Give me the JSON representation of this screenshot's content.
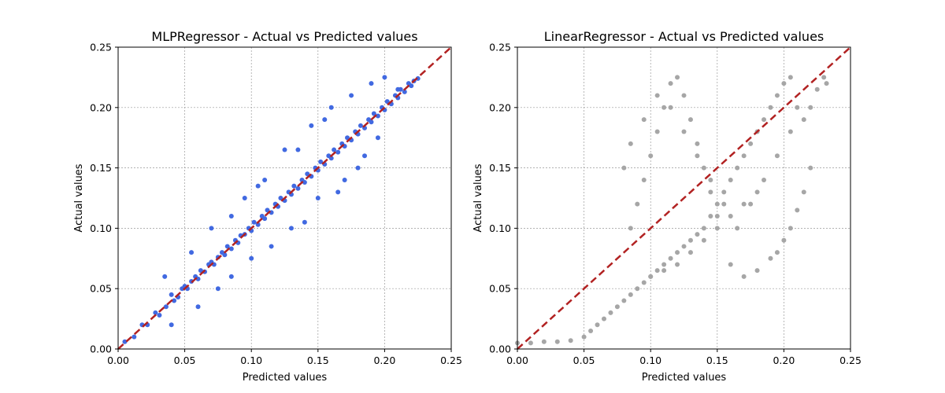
{
  "chart_data": [
    {
      "type": "scatter",
      "title": "MLPRegressor - Actual vs Predicted values",
      "xlabel": "Predicted values",
      "ylabel": "Actual values",
      "xlim": [
        0.0,
        0.25
      ],
      "ylim": [
        0.0,
        0.25
      ],
      "xticks": [
        "0.00",
        "0.05",
        "0.10",
        "0.15",
        "0.20",
        "0.25"
      ],
      "yticks": [
        "0.00",
        "0.05",
        "0.10",
        "0.15",
        "0.20",
        "0.25"
      ],
      "grid": true,
      "point_color": "#4169e1",
      "reference_line": {
        "from": [
          0.0,
          0.0
        ],
        "to": [
          0.25,
          0.25
        ],
        "color": "#b22222",
        "style": "dashed"
      },
      "x": [
        0.005,
        0.012,
        0.018,
        0.022,
        0.028,
        0.031,
        0.036,
        0.04,
        0.042,
        0.045,
        0.048,
        0.05,
        0.052,
        0.055,
        0.058,
        0.06,
        0.062,
        0.065,
        0.068,
        0.07,
        0.072,
        0.075,
        0.078,
        0.08,
        0.082,
        0.085,
        0.088,
        0.09,
        0.092,
        0.095,
        0.098,
        0.1,
        0.102,
        0.105,
        0.108,
        0.11,
        0.112,
        0.115,
        0.118,
        0.12,
        0.122,
        0.125,
        0.128,
        0.13,
        0.132,
        0.135,
        0.138,
        0.14,
        0.142,
        0.145,
        0.148,
        0.15,
        0.152,
        0.155,
        0.158,
        0.16,
        0.162,
        0.165,
        0.168,
        0.17,
        0.172,
        0.175,
        0.178,
        0.18,
        0.182,
        0.185,
        0.188,
        0.19,
        0.192,
        0.195,
        0.198,
        0.2,
        0.202,
        0.205,
        0.208,
        0.21,
        0.212,
        0.215,
        0.218,
        0.22,
        0.222,
        0.225,
        0.035,
        0.06,
        0.085,
        0.105,
        0.125,
        0.145,
        0.16,
        0.175,
        0.19,
        0.2,
        0.21,
        0.085,
        0.1,
        0.115,
        0.13,
        0.15,
        0.17,
        0.185,
        0.195,
        0.055,
        0.07,
        0.095,
        0.11,
        0.135,
        0.155,
        0.04,
        0.075,
        0.14,
        0.165,
        0.18
      ],
      "y": [
        0.006,
        0.01,
        0.02,
        0.02,
        0.03,
        0.028,
        0.035,
        0.045,
        0.04,
        0.043,
        0.05,
        0.052,
        0.05,
        0.056,
        0.06,
        0.058,
        0.065,
        0.064,
        0.07,
        0.072,
        0.07,
        0.076,
        0.08,
        0.078,
        0.085,
        0.083,
        0.09,
        0.088,
        0.094,
        0.095,
        0.1,
        0.098,
        0.105,
        0.103,
        0.11,
        0.108,
        0.115,
        0.113,
        0.12,
        0.118,
        0.125,
        0.123,
        0.13,
        0.128,
        0.135,
        0.133,
        0.14,
        0.138,
        0.145,
        0.143,
        0.15,
        0.148,
        0.155,
        0.153,
        0.16,
        0.158,
        0.165,
        0.163,
        0.17,
        0.168,
        0.175,
        0.173,
        0.18,
        0.178,
        0.185,
        0.183,
        0.19,
        0.188,
        0.195,
        0.193,
        0.2,
        0.198,
        0.205,
        0.203,
        0.21,
        0.208,
        0.215,
        0.213,
        0.22,
        0.218,
        0.222,
        0.224,
        0.06,
        0.035,
        0.11,
        0.135,
        0.165,
        0.185,
        0.2,
        0.21,
        0.22,
        0.225,
        0.215,
        0.06,
        0.075,
        0.085,
        0.1,
        0.125,
        0.14,
        0.16,
        0.175,
        0.08,
        0.1,
        0.125,
        0.14,
        0.165,
        0.19,
        0.02,
        0.05,
        0.105,
        0.13,
        0.15
      ]
    },
    {
      "type": "scatter",
      "title": "LinearRegressor - Actual vs Predicted values",
      "xlabel": "Predicted values",
      "ylabel": "Actual values",
      "xlim": [
        0.0,
        0.25
      ],
      "ylim": [
        0.0,
        0.25
      ],
      "xticks": [
        "0.00",
        "0.05",
        "0.10",
        "0.15",
        "0.20",
        "0.25"
      ],
      "yticks": [
        "0.00",
        "0.05",
        "0.10",
        "0.15",
        "0.20",
        "0.25"
      ],
      "grid": true,
      "point_color": "#a6a6a6",
      "reference_line": {
        "from": [
          0.0,
          0.0
        ],
        "to": [
          0.25,
          0.25
        ],
        "color": "#b22222",
        "style": "dashed"
      },
      "x": [
        0.0,
        0.01,
        0.02,
        0.03,
        0.04,
        0.05,
        0.055,
        0.06,
        0.065,
        0.07,
        0.075,
        0.08,
        0.085,
        0.09,
        0.095,
        0.1,
        0.105,
        0.11,
        0.115,
        0.12,
        0.125,
        0.13,
        0.135,
        0.14,
        0.145,
        0.15,
        0.155,
        0.16,
        0.165,
        0.17,
        0.175,
        0.18,
        0.185,
        0.19,
        0.195,
        0.2,
        0.205,
        0.21,
        0.215,
        0.22,
        0.225,
        0.23,
        0.085,
        0.09,
        0.095,
        0.1,
        0.105,
        0.11,
        0.115,
        0.12,
        0.125,
        0.13,
        0.135,
        0.14,
        0.145,
        0.15,
        0.16,
        0.17,
        0.18,
        0.19,
        0.195,
        0.2,
        0.205,
        0.21,
        0.215,
        0.22,
        0.232,
        0.08,
        0.085,
        0.095,
        0.105,
        0.115,
        0.125,
        0.135,
        0.145,
        0.155,
        0.165,
        0.175,
        0.185,
        0.195,
        0.205,
        0.1,
        0.11,
        0.12,
        0.13,
        0.14,
        0.15,
        0.16,
        0.17,
        0.18
      ],
      "y": [
        0.005,
        0.005,
        0.006,
        0.006,
        0.007,
        0.01,
        0.015,
        0.02,
        0.025,
        0.03,
        0.035,
        0.04,
        0.045,
        0.05,
        0.055,
        0.06,
        0.065,
        0.07,
        0.075,
        0.08,
        0.085,
        0.09,
        0.095,
        0.1,
        0.11,
        0.12,
        0.13,
        0.14,
        0.15,
        0.16,
        0.17,
        0.18,
        0.19,
        0.2,
        0.21,
        0.22,
        0.225,
        0.2,
        0.19,
        0.2,
        0.215,
        0.225,
        0.1,
        0.12,
        0.14,
        0.16,
        0.18,
        0.2,
        0.22,
        0.225,
        0.21,
        0.19,
        0.17,
        0.15,
        0.13,
        0.11,
        0.07,
        0.06,
        0.065,
        0.075,
        0.08,
        0.09,
        0.1,
        0.115,
        0.13,
        0.15,
        0.22,
        0.15,
        0.17,
        0.19,
        0.21,
        0.2,
        0.18,
        0.16,
        0.14,
        0.12,
        0.1,
        0.12,
        0.14,
        0.16,
        0.18,
        0.06,
        0.065,
        0.07,
        0.08,
        0.09,
        0.1,
        0.11,
        0.12,
        0.13
      ]
    }
  ]
}
